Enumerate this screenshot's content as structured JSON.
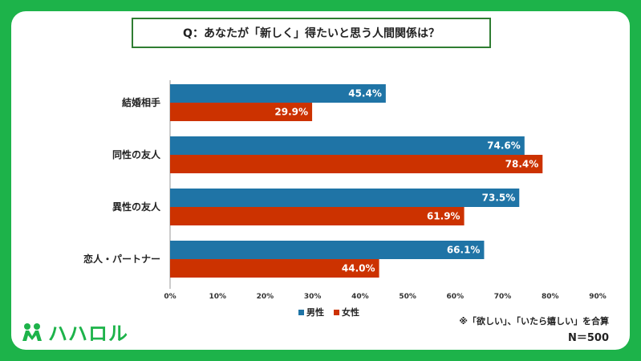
{
  "colors": {
    "male": "#1f74a6",
    "female": "#cc3200",
    "brand": "#1db34a"
  },
  "chart_data": {
    "type": "bar",
    "orientation": "horizontal",
    "title": "Q：あなたが「新しく」得たいと思う人間関係は？",
    "categories": [
      "結婚相手",
      "同性の友人",
      "異性の友人",
      "恋人・パートナー"
    ],
    "series": [
      {
        "name": "男性",
        "values": [
          45.4,
          74.6,
          73.5,
          66.1
        ]
      },
      {
        "name": "女性",
        "values": [
          29.9,
          78.4,
          61.9,
          44.0
        ]
      }
    ],
    "value_labels": [
      [
        "45.4%",
        "74.6%",
        "73.5%",
        "66.1%"
      ],
      [
        "29.9%",
        "78.4%",
        "61.9%",
        "44.0%"
      ]
    ],
    "xlim": [
      0,
      90
    ],
    "xticks": [
      "0%",
      "10%",
      "20%",
      "30%",
      "40%",
      "50%",
      "60%",
      "70%",
      "80%",
      "90%"
    ],
    "legend_position": "bottom"
  },
  "note": "※「欲しい」、「いたら嬉しい」を合算",
  "sample_size": "N＝500",
  "logo": {
    "text": "ハハロル",
    "icon": "baby-logo-icon"
  }
}
